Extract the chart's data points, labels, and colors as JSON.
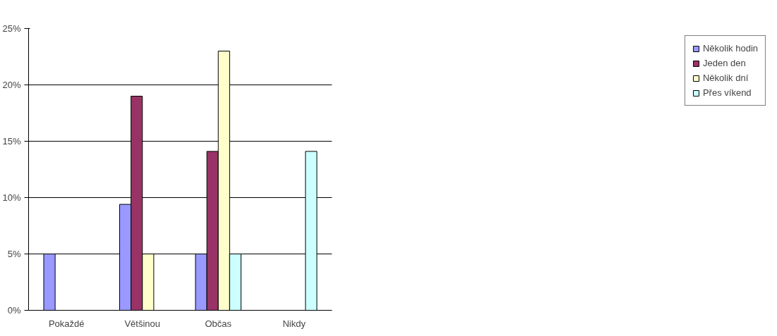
{
  "chart_data": {
    "type": "bar",
    "categories": [
      "Pokaždé",
      "Většinou",
      "Občas",
      "Nikdy"
    ],
    "series": [
      {
        "name": "Několik hodin",
        "color": "#9999ff",
        "values": [
          5,
          9.4,
          5,
          null
        ]
      },
      {
        "name": "Jeden den",
        "color": "#993366",
        "values": [
          null,
          19,
          14.1,
          null
        ]
      },
      {
        "name": "Několik dní",
        "color": "#ffffcc",
        "values": [
          null,
          5,
          23,
          null
        ]
      },
      {
        "name": "Přes víkend",
        "color": "#ccffff",
        "values": [
          null,
          null,
          5,
          14.1
        ]
      }
    ],
    "ylim": [
      0,
      25
    ],
    "yticks": [
      {
        "value": 0,
        "label": "0%"
      },
      {
        "value": 5,
        "label": "5%"
      },
      {
        "value": 10,
        "label": "10%"
      },
      {
        "value": 15,
        "label": "15%"
      },
      {
        "value": 20,
        "label": "20%"
      },
      {
        "value": 25,
        "label": "25%"
      }
    ],
    "grid": "y",
    "legend": "right"
  }
}
